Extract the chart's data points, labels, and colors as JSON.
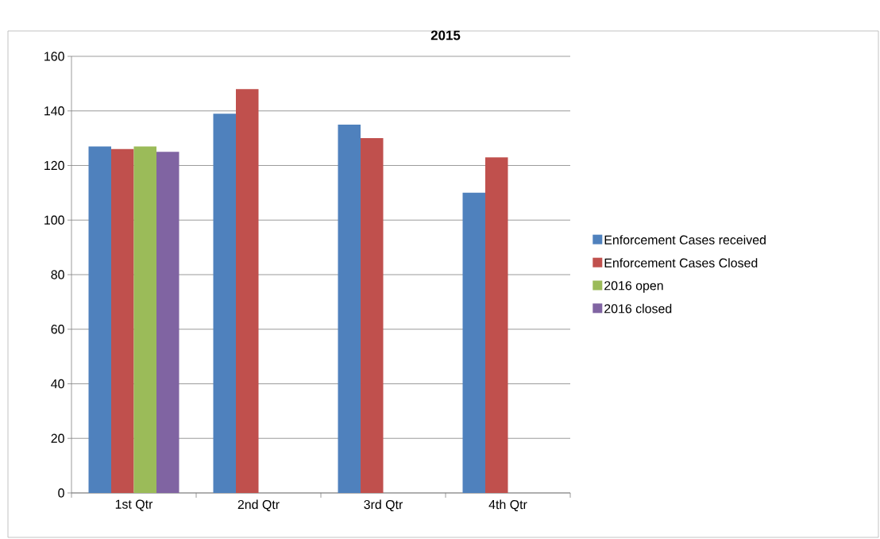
{
  "chart_data": {
    "type": "bar",
    "title": "2015",
    "categories": [
      "1st Qtr",
      "2nd Qtr",
      "3rd Qtr",
      "4th Qtr"
    ],
    "series": [
      {
        "name": "Enforcement Cases received",
        "color": "#4f81bd",
        "values": [
          127,
          139,
          135,
          110
        ]
      },
      {
        "name": "Enforcement Cases Closed",
        "color": "#c0504d",
        "values": [
          126,
          148,
          130,
          123
        ]
      },
      {
        "name": "2016 open",
        "color": "#9bbb59",
        "values": [
          127,
          null,
          null,
          null
        ]
      },
      {
        "name": "2016 closed",
        "color": "#8064a2",
        "values": [
          125,
          null,
          null,
          null
        ]
      }
    ],
    "ylim": [
      0,
      160
    ],
    "yticks": [
      0,
      20,
      40,
      60,
      80,
      100,
      120,
      140,
      160
    ],
    "grid": "y",
    "legend": "right"
  }
}
